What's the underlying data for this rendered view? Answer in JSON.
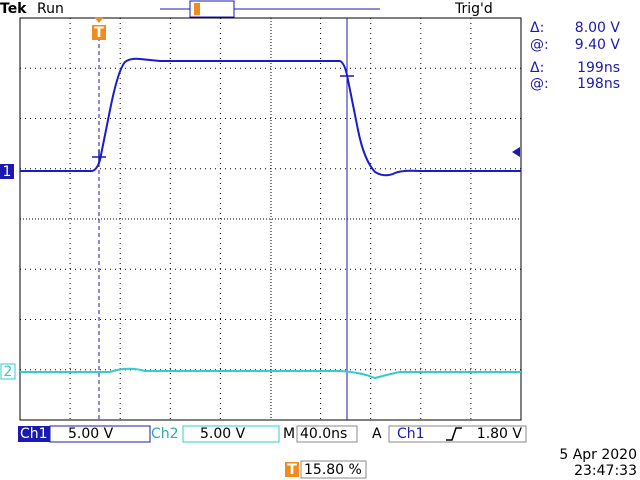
{
  "header": {
    "brand": "Tek",
    "state": "Run",
    "trigger_status": "Trig'd"
  },
  "readout": [
    {
      "label": "Δ:",
      "value": "8.00 V"
    },
    {
      "label": "@:",
      "value": "9.40 V"
    },
    {
      "label": "Δ:",
      "value": "199ns"
    },
    {
      "label": "@:",
      "value": "198ns"
    }
  ],
  "markers": {
    "trigger": "T",
    "ch1": "1",
    "ch2": "2"
  },
  "status_bar": {
    "ch1_label": "Ch1",
    "ch1_scale": "5.00 V",
    "ch2_label": "Ch2",
    "ch2_scale": "5.00 V",
    "time_label": "M",
    "time_scale": "40.0ns",
    "trigger_label": "A",
    "trigger_source": "Ch1",
    "trigger_level": "1.80 V"
  },
  "footer": {
    "date": "5 Apr 2020",
    "time": "23:47:33",
    "trigger_marker": "T",
    "trigger_position": "15.80 %"
  }
}
